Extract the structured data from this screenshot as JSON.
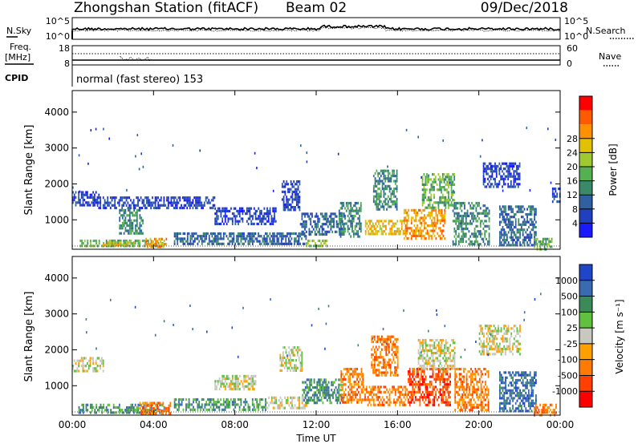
{
  "header": {
    "title": "Zhongshan Station (fitACF)",
    "beam": "Beam 02",
    "date": "09/Dec/2018"
  },
  "side_labels": {
    "nsky": "N.Sky",
    "nsearch": "N.Search",
    "freq_top": "Freq.",
    "freq_unit": "[MHz]",
    "cpid": "CPID",
    "nave": "Nave"
  },
  "cpid_text": "normal (fast stereo) 153",
  "noise_panel": {
    "left_ticks": [
      "10^5",
      "10^0"
    ],
    "right_ticks": [
      "10^5",
      "10^0"
    ]
  },
  "freq_panel": {
    "left_ticks": [
      "18",
      "8"
    ],
    "right_ticks": [
      "60",
      "0"
    ]
  },
  "chart_data": [
    {
      "type": "heatmap",
      "name": "power",
      "xlabel": "Time UT",
      "ylabel": "Slant Range [km]",
      "xlim": [
        0,
        24
      ],
      "ylim": [
        180,
        4600
      ],
      "xticks": [
        "00:00",
        "04:00",
        "08:00",
        "12:00",
        "16:00",
        "20:00",
        "00:00"
      ],
      "yticks": [
        1000,
        2000,
        3000,
        4000
      ],
      "colorbar": {
        "label": "Power [dB]",
        "ticks": [
          "4",
          "8",
          "12",
          "16",
          "20",
          "24",
          "28"
        ],
        "colors": [
          "#1a1aff",
          "#2040c0",
          "#3060a0",
          "#3a8a6a",
          "#55b050",
          "#a0c830",
          "#e0c000",
          "#ff9000",
          "#ff5a00",
          "#ff0000"
        ]
      },
      "regions": [
        {
          "t0": 0.0,
          "t1": 1.3,
          "r0": 1400,
          "r1": 1800,
          "level": 1
        },
        {
          "t0": 0.3,
          "t1": 4.5,
          "r0": 250,
          "r1": 450,
          "level": 4
        },
        {
          "t0": 1.5,
          "t1": 3.0,
          "r0": 300,
          "r1": 400,
          "level": 6
        },
        {
          "t0": 3.6,
          "t1": 4.6,
          "r0": 250,
          "r1": 500,
          "level": 7
        },
        {
          "t0": 2.3,
          "t1": 3.5,
          "r0": 600,
          "r1": 1300,
          "level": 3
        },
        {
          "t0": 1.0,
          "t1": 7.0,
          "r0": 1350,
          "r1": 1650,
          "level": 1
        },
        {
          "t0": 5.0,
          "t1": 11.5,
          "r0": 350,
          "r1": 650,
          "level": 2
        },
        {
          "t0": 7.0,
          "t1": 10.0,
          "r0": 900,
          "r1": 1350,
          "level": 1
        },
        {
          "t0": 10.3,
          "t1": 11.2,
          "r0": 1300,
          "r1": 2100,
          "level": 1
        },
        {
          "t0": 11.5,
          "t1": 12.5,
          "r0": 250,
          "r1": 450,
          "level": 5
        },
        {
          "t0": 11.2,
          "t1": 13.4,
          "r0": 600,
          "r1": 1200,
          "level": 2
        },
        {
          "t0": 13.1,
          "t1": 14.2,
          "r0": 550,
          "r1": 1500,
          "level": 3
        },
        {
          "t0": 14.4,
          "t1": 16.3,
          "r0": 600,
          "r1": 1000,
          "level": 6
        },
        {
          "t0": 14.8,
          "t1": 16.0,
          "r0": 1300,
          "r1": 2400,
          "level": 3
        },
        {
          "t0": 16.3,
          "t1": 18.3,
          "r0": 450,
          "r1": 1300,
          "level": 7
        },
        {
          "t0": 17.2,
          "t1": 18.8,
          "r0": 1300,
          "r1": 2300,
          "level": 4
        },
        {
          "t0": 18.7,
          "t1": 20.5,
          "r0": 300,
          "r1": 1500,
          "level": 3
        },
        {
          "t0": 20.2,
          "t1": 22.0,
          "r0": 1900,
          "r1": 2600,
          "level": 1
        },
        {
          "t0": 21.0,
          "t1": 22.8,
          "r0": 300,
          "r1": 1400,
          "level": 2
        },
        {
          "t0": 22.7,
          "t1": 23.6,
          "r0": 200,
          "r1": 500,
          "level": 4
        },
        {
          "t0": 23.6,
          "t1": 24.0,
          "r0": 1500,
          "r1": 1900,
          "level": 1
        }
      ]
    },
    {
      "type": "heatmap",
      "name": "velocity",
      "xlabel": "Time UT",
      "ylabel": "Slant Range [km]",
      "xlim": [
        0,
        24
      ],
      "ylim": [
        180,
        4600
      ],
      "xticks": [
        "00:00",
        "04:00",
        "08:00",
        "12:00",
        "16:00",
        "20:00",
        "00:00"
      ],
      "yticks": [
        1000,
        2000,
        3000,
        4000
      ],
      "colorbar": {
        "label": "Velocity [m s⁻¹]",
        "ticks": [
          "1000",
          "500",
          "100",
          "25",
          "-25",
          "-100",
          "-500",
          "-1000"
        ],
        "colors": [
          "#2046c8",
          "#3a6ab0",
          "#3c8a5a",
          "#60c040",
          "#c8c8c0",
          "#ffa000",
          "#ff7a00",
          "#ff4000",
          "#ff0000"
        ]
      },
      "regions": [
        {
          "t0": 0.0,
          "t1": 1.5,
          "r0": 1400,
          "r1": 1800,
          "level": 4
        },
        {
          "t0": 0.3,
          "t1": 4.5,
          "r0": 250,
          "r1": 500,
          "level": 2
        },
        {
          "t0": 3.3,
          "t1": 4.8,
          "r0": 250,
          "r1": 550,
          "level": 6
        },
        {
          "t0": 5.0,
          "t1": 9.5,
          "r0": 300,
          "r1": 650,
          "level": 2
        },
        {
          "t0": 7.0,
          "t1": 9.0,
          "r0": 900,
          "r1": 1300,
          "level": 4
        },
        {
          "t0": 10.2,
          "t1": 11.3,
          "r0": 1400,
          "r1": 2100,
          "level": 4
        },
        {
          "t0": 9.5,
          "t1": 11.5,
          "r0": 350,
          "r1": 700,
          "level": 4
        },
        {
          "t0": 11.3,
          "t1": 13.3,
          "r0": 500,
          "r1": 1200,
          "level": 2
        },
        {
          "t0": 13.2,
          "t1": 14.3,
          "r0": 500,
          "r1": 1500,
          "level": 6
        },
        {
          "t0": 14.3,
          "t1": 16.5,
          "r0": 450,
          "r1": 1000,
          "level": 6
        },
        {
          "t0": 14.7,
          "t1": 16.0,
          "r0": 1300,
          "r1": 2400,
          "level": 6
        },
        {
          "t0": 16.5,
          "t1": 18.6,
          "r0": 450,
          "r1": 1500,
          "level": 7
        },
        {
          "t0": 17.0,
          "t1": 18.8,
          "r0": 1500,
          "r1": 2300,
          "level": 4
        },
        {
          "t0": 18.8,
          "t1": 20.5,
          "r0": 300,
          "r1": 1500,
          "level": 6
        },
        {
          "t0": 20.0,
          "t1": 22.0,
          "r0": 1900,
          "r1": 2700,
          "level": 4
        },
        {
          "t0": 21.0,
          "t1": 22.8,
          "r0": 300,
          "r1": 1400,
          "level": 1
        },
        {
          "t0": 22.7,
          "t1": 23.8,
          "r0": 200,
          "r1": 500,
          "level": 6
        }
      ]
    }
  ]
}
